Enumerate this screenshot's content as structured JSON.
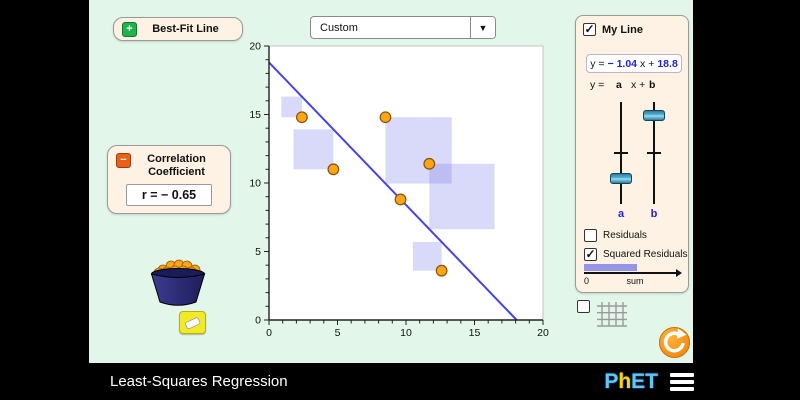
{
  "colors": {
    "background": "#e3f6ea",
    "panel_cream": "#fdf2e4",
    "accent_blue": "#1e1ee6",
    "line_blue": "#4444ee",
    "point_orange": "#f9a51a",
    "point_stroke": "#8a5200",
    "square_purple": "rgba(120,120,235,0.28)",
    "sum_bar_purple": "#9595e8",
    "refresh_orange": "#f7941d"
  },
  "best_fit_button": {
    "label": "Best-Fit Line",
    "icon": "plus"
  },
  "dataset_dropdown": {
    "value": "Custom"
  },
  "correlation_panel": {
    "title": "Correlation Coefficient",
    "r_value": "r = − 0.65",
    "icon": "minus"
  },
  "my_line_panel": {
    "title": "My Line",
    "checked": true,
    "equation": {
      "prefix": "y =",
      "slope": "− 1.04",
      "middle": "x +",
      "intercept": "18.8"
    },
    "template": {
      "prefix": "y =",
      "a": "a",
      "middle": "x +",
      "b": "b"
    },
    "slider_a": {
      "label": "a",
      "fraction": 0.75
    },
    "slider_b": {
      "label": "b",
      "fraction": 0.13
    },
    "residuals": {
      "label": "Residuals",
      "checked": false
    },
    "squared_residuals": {
      "label": "Squared Residuals",
      "checked": true
    },
    "sum_bar": {
      "zero_label": "0",
      "sum_label": "sum",
      "fraction": 0.58
    }
  },
  "grid_checkbox": {
    "checked": false
  },
  "bottom_bar": {
    "title": "Least-Squares Regression",
    "logo_text_p": "P",
    "logo_text_h": "h",
    "logo_text_et": "ET"
  },
  "chart_data": {
    "type": "scatter",
    "title": "",
    "xlabel": "",
    "ylabel": "",
    "xlim": [
      0,
      20
    ],
    "ylim": [
      0,
      20
    ],
    "x_ticks": [
      0,
      5,
      10,
      15,
      20
    ],
    "y_ticks": [
      0,
      5,
      10,
      15,
      20
    ],
    "minor_tick_step": 1,
    "grid": false,
    "legend": "none",
    "points": [
      [
        2.4,
        14.8
      ],
      [
        4.7,
        11.0
      ],
      [
        8.5,
        14.8
      ],
      [
        9.6,
        8.8
      ],
      [
        11.7,
        11.4
      ],
      [
        12.6,
        3.6
      ]
    ],
    "my_line": {
      "slope": -1.04,
      "intercept": 18.8
    },
    "show_squared_residuals": true
  }
}
